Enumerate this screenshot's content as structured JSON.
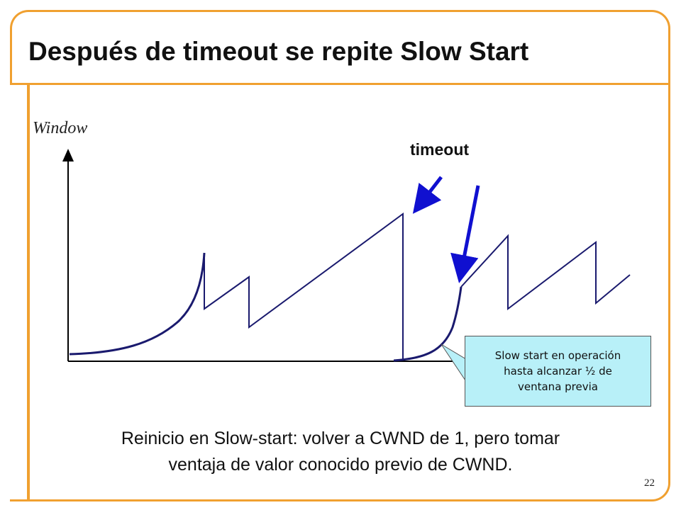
{
  "slide": {
    "title": "Después de timeout se repite Slow Start",
    "page_number": "22",
    "caption_line1": "Reinicio en Slow-start: volver a CWND de 1, pero tomar",
    "caption_line2": "ventaja de valor conocido previo de CWND."
  },
  "diagram": {
    "y_axis_label": "Window",
    "timeout_label": "timeout",
    "callout_line1": "Slow start en operación",
    "callout_line2": "hasta alcanzar ½ de",
    "callout_line3": "ventana previa"
  },
  "colors": {
    "frame": "#f0a030",
    "slow_start_curve": "#1a1a6e",
    "arrow": "#1010d0",
    "callout_fill": "#b8f0f8"
  }
}
